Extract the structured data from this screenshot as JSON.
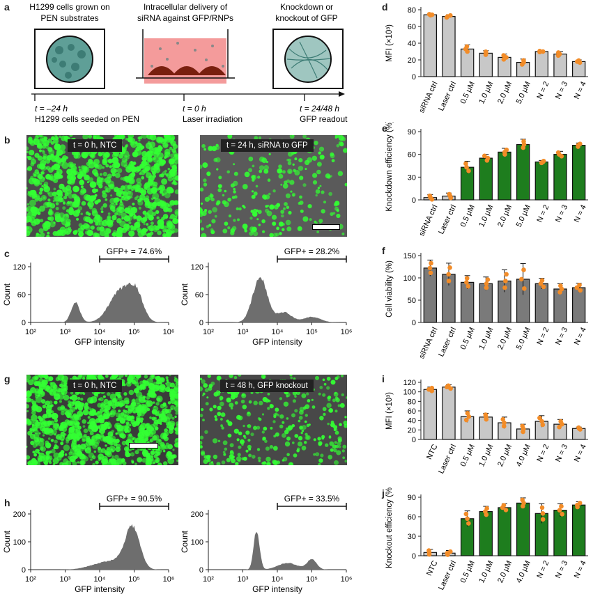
{
  "panel_letters": {
    "a": "a",
    "b": "b",
    "c": "c",
    "d": "d",
    "e": "e",
    "f": "f",
    "g": "g",
    "h": "h",
    "i": "i",
    "j": "j"
  },
  "schematic": {
    "step1": [
      "H1299 cells grown on",
      "PEN substrates"
    ],
    "step2": [
      "Intracellular delivery of",
      "siRNA against GFP/RNPs"
    ],
    "step3": [
      "Knockdown or",
      "knockout of GFP"
    ],
    "time1": "t = –24 h",
    "time2": "t = 0 h",
    "time3": "t = 24/48 h",
    "desc1": "H1299 cells seeded on PEN",
    "desc2": "Laser irradiation",
    "desc3": "GFP readout"
  },
  "micrographs": {
    "b_left": "t = 0 h, NTC",
    "b_right": "t = 24 h, siRNA to GFP",
    "g_left": "t = 0 h, NTC",
    "g_right": "t = 48 h, GFP knockout"
  },
  "histograms": {
    "c_left": {
      "gate_label": "GFP+ = 74.6%",
      "ylabel": "Count",
      "yticks": [
        "0",
        "60",
        "120"
      ],
      "xlabel": "GFP intensity",
      "xticks": [
        "10²",
        "10³",
        "10⁴",
        "10⁵",
        "10⁶"
      ]
    },
    "c_right": {
      "gate_label": "GFP+ = 28.2%",
      "ylabel": "Count",
      "yticks": [
        "0",
        "60",
        "120"
      ],
      "xlabel": "GFP intensity",
      "xticks": [
        "10²",
        "10³",
        "10⁴",
        "10⁵",
        "10⁶"
      ]
    },
    "h_left": {
      "gate_label": "GFP+ = 90.5%",
      "ylabel": "Count",
      "yticks": [
        "0",
        "100",
        "200"
      ],
      "xlabel": "GFP intensity",
      "xticks": [
        "10²",
        "10³",
        "10⁴",
        "10⁵",
        "10⁶"
      ]
    },
    "h_right": {
      "gate_label": "GFP+ = 33.5%",
      "ylabel": "Count",
      "yticks": [
        "0",
        "100",
        "200"
      ],
      "xlabel": "GFP intensity",
      "xticks": [
        "10²",
        "10³",
        "10⁴",
        "10⁵",
        "10⁶"
      ]
    }
  },
  "colors": {
    "grey_bar": "#c8c8c8",
    "dark_bar": "#7a7a7a",
    "green_bar": "#1e7d1e",
    "dot": "#f28c28",
    "hist": "#6e6e6e",
    "cell_green": "#33ff33"
  },
  "chart_data": [
    {
      "id": "d",
      "type": "bar",
      "ylabel": "MFI (×10³)",
      "ylim": [
        0,
        80
      ],
      "yticks": [
        0,
        20,
        40,
        60,
        80
      ],
      "categories": [
        "siRNA ctrl",
        "Laser ctrl",
        "0.5 μM",
        "1.0 μM",
        "2.0 μM",
        "5.0 μM",
        "N = 2",
        "N = 3",
        "N = 4"
      ],
      "values": [
        74,
        72,
        33,
        28,
        23,
        17,
        30,
        27,
        18
      ],
      "errors": [
        1,
        2,
        5,
        3,
        4,
        4,
        1,
        3,
        2
      ],
      "color": "grey"
    },
    {
      "id": "e",
      "type": "bar",
      "ylabel": "Knockdown efficiency (%)",
      "ylim": [
        0,
        90
      ],
      "yticks": [
        0,
        30,
        60,
        90
      ],
      "categories": [
        "siRNA ctrl",
        "Laser ctrl",
        "0.5 μM",
        "1.0 μM",
        "2.0 μM",
        "5.0 μM",
        "N = 2",
        "N = 3",
        "N = 4"
      ],
      "values": [
        3,
        5,
        43,
        55,
        63,
        73,
        50,
        60,
        72
      ],
      "errors": [
        4,
        4,
        8,
        5,
        5,
        7,
        2,
        4,
        3
      ],
      "colors": [
        "grey",
        "grey",
        "green",
        "green",
        "green",
        "green",
        "green",
        "green",
        "green"
      ]
    },
    {
      "id": "f",
      "type": "bar",
      "ylabel": "Cell viability (%)",
      "ylim": [
        0,
        150
      ],
      "yticks": [
        0,
        50,
        100,
        150
      ],
      "categories": [
        "siRNA ctrl",
        "Laser ctrl",
        "0.5 μM",
        "1.0 μM",
        "2.0 μM",
        "5.0 μM",
        "N = 2",
        "N = 3",
        "N = 4"
      ],
      "values": [
        122,
        108,
        90,
        87,
        93,
        97,
        87,
        75,
        78
      ],
      "errors": [
        18,
        25,
        15,
        15,
        25,
        35,
        12,
        12,
        10
      ],
      "color": "dark"
    },
    {
      "id": "i",
      "type": "bar",
      "ylabel": "MFI (×10³)",
      "ylim": [
        0,
        120
      ],
      "yticks": [
        0,
        20,
        40,
        60,
        80,
        100,
        120
      ],
      "categories": [
        "NTC",
        "Laser ctrl",
        "0.5 μM",
        "1.0 μM",
        "2.0 μM",
        "4.0 μM",
        "N = 2",
        "N = 3",
        "N = 4"
      ],
      "values": [
        105,
        110,
        48,
        47,
        35,
        22,
        38,
        32,
        23
      ],
      "errors": [
        5,
        5,
        12,
        8,
        12,
        10,
        12,
        10,
        3
      ],
      "color": "grey"
    },
    {
      "id": "j",
      "type": "bar",
      "ylabel": "Knockout efficiency (%)",
      "ylim": [
        0,
        90
      ],
      "yticks": [
        0,
        30,
        60,
        90
      ],
      "categories": [
        "NTC",
        "Laser ctrl",
        "0.5 μM",
        "1.0 μM",
        "2.0 μM",
        "4.0 μM",
        "N = 2",
        "N = 3",
        "N = 4"
      ],
      "values": [
        5,
        4,
        57,
        68,
        74,
        81,
        65,
        70,
        78
      ],
      "errors": [
        5,
        4,
        12,
        8,
        6,
        8,
        15,
        10,
        5
      ],
      "colors": [
        "grey",
        "grey",
        "green",
        "green",
        "green",
        "green",
        "green",
        "green",
        "green"
      ]
    }
  ]
}
